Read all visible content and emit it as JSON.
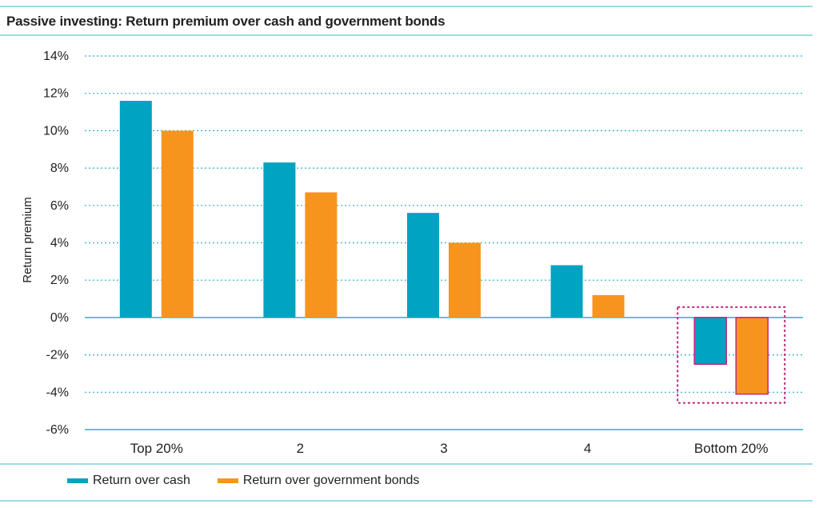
{
  "chart_data": {
    "type": "bar",
    "title": "Passive investing: Return premium over cash and government bonds",
    "ylabel": "Return premium",
    "xlabel": "",
    "categories": [
      "Top 20%",
      "2",
      "3",
      "4",
      "Bottom 20%"
    ],
    "series": [
      {
        "name": "Return over cash",
        "values": [
          11.6,
          8.3,
          5.6,
          2.8,
          -2.5
        ]
      },
      {
        "name": "Return over government bonds",
        "values": [
          10.0,
          6.7,
          4.0,
          1.2,
          -4.1
        ]
      }
    ],
    "ylim": [
      -6,
      14
    ],
    "yticks": [
      14,
      12,
      10,
      8,
      6,
      4,
      2,
      0,
      -2,
      -4,
      -6
    ],
    "ytick_labels": [
      "14%",
      "12%",
      "10%",
      "8%",
      "6%",
      "4%",
      "2%",
      "0%",
      "-2%",
      "-4%",
      "-6%"
    ],
    "grid": true,
    "legend_position": "bottom-left",
    "highlight_category": "Bottom 20%",
    "colors": {
      "cash": "#00a3c1",
      "bonds": "#f7941d",
      "grid": "#2ab0c8",
      "rule": "#7fcfdd",
      "highlight": "#c0267e"
    }
  }
}
